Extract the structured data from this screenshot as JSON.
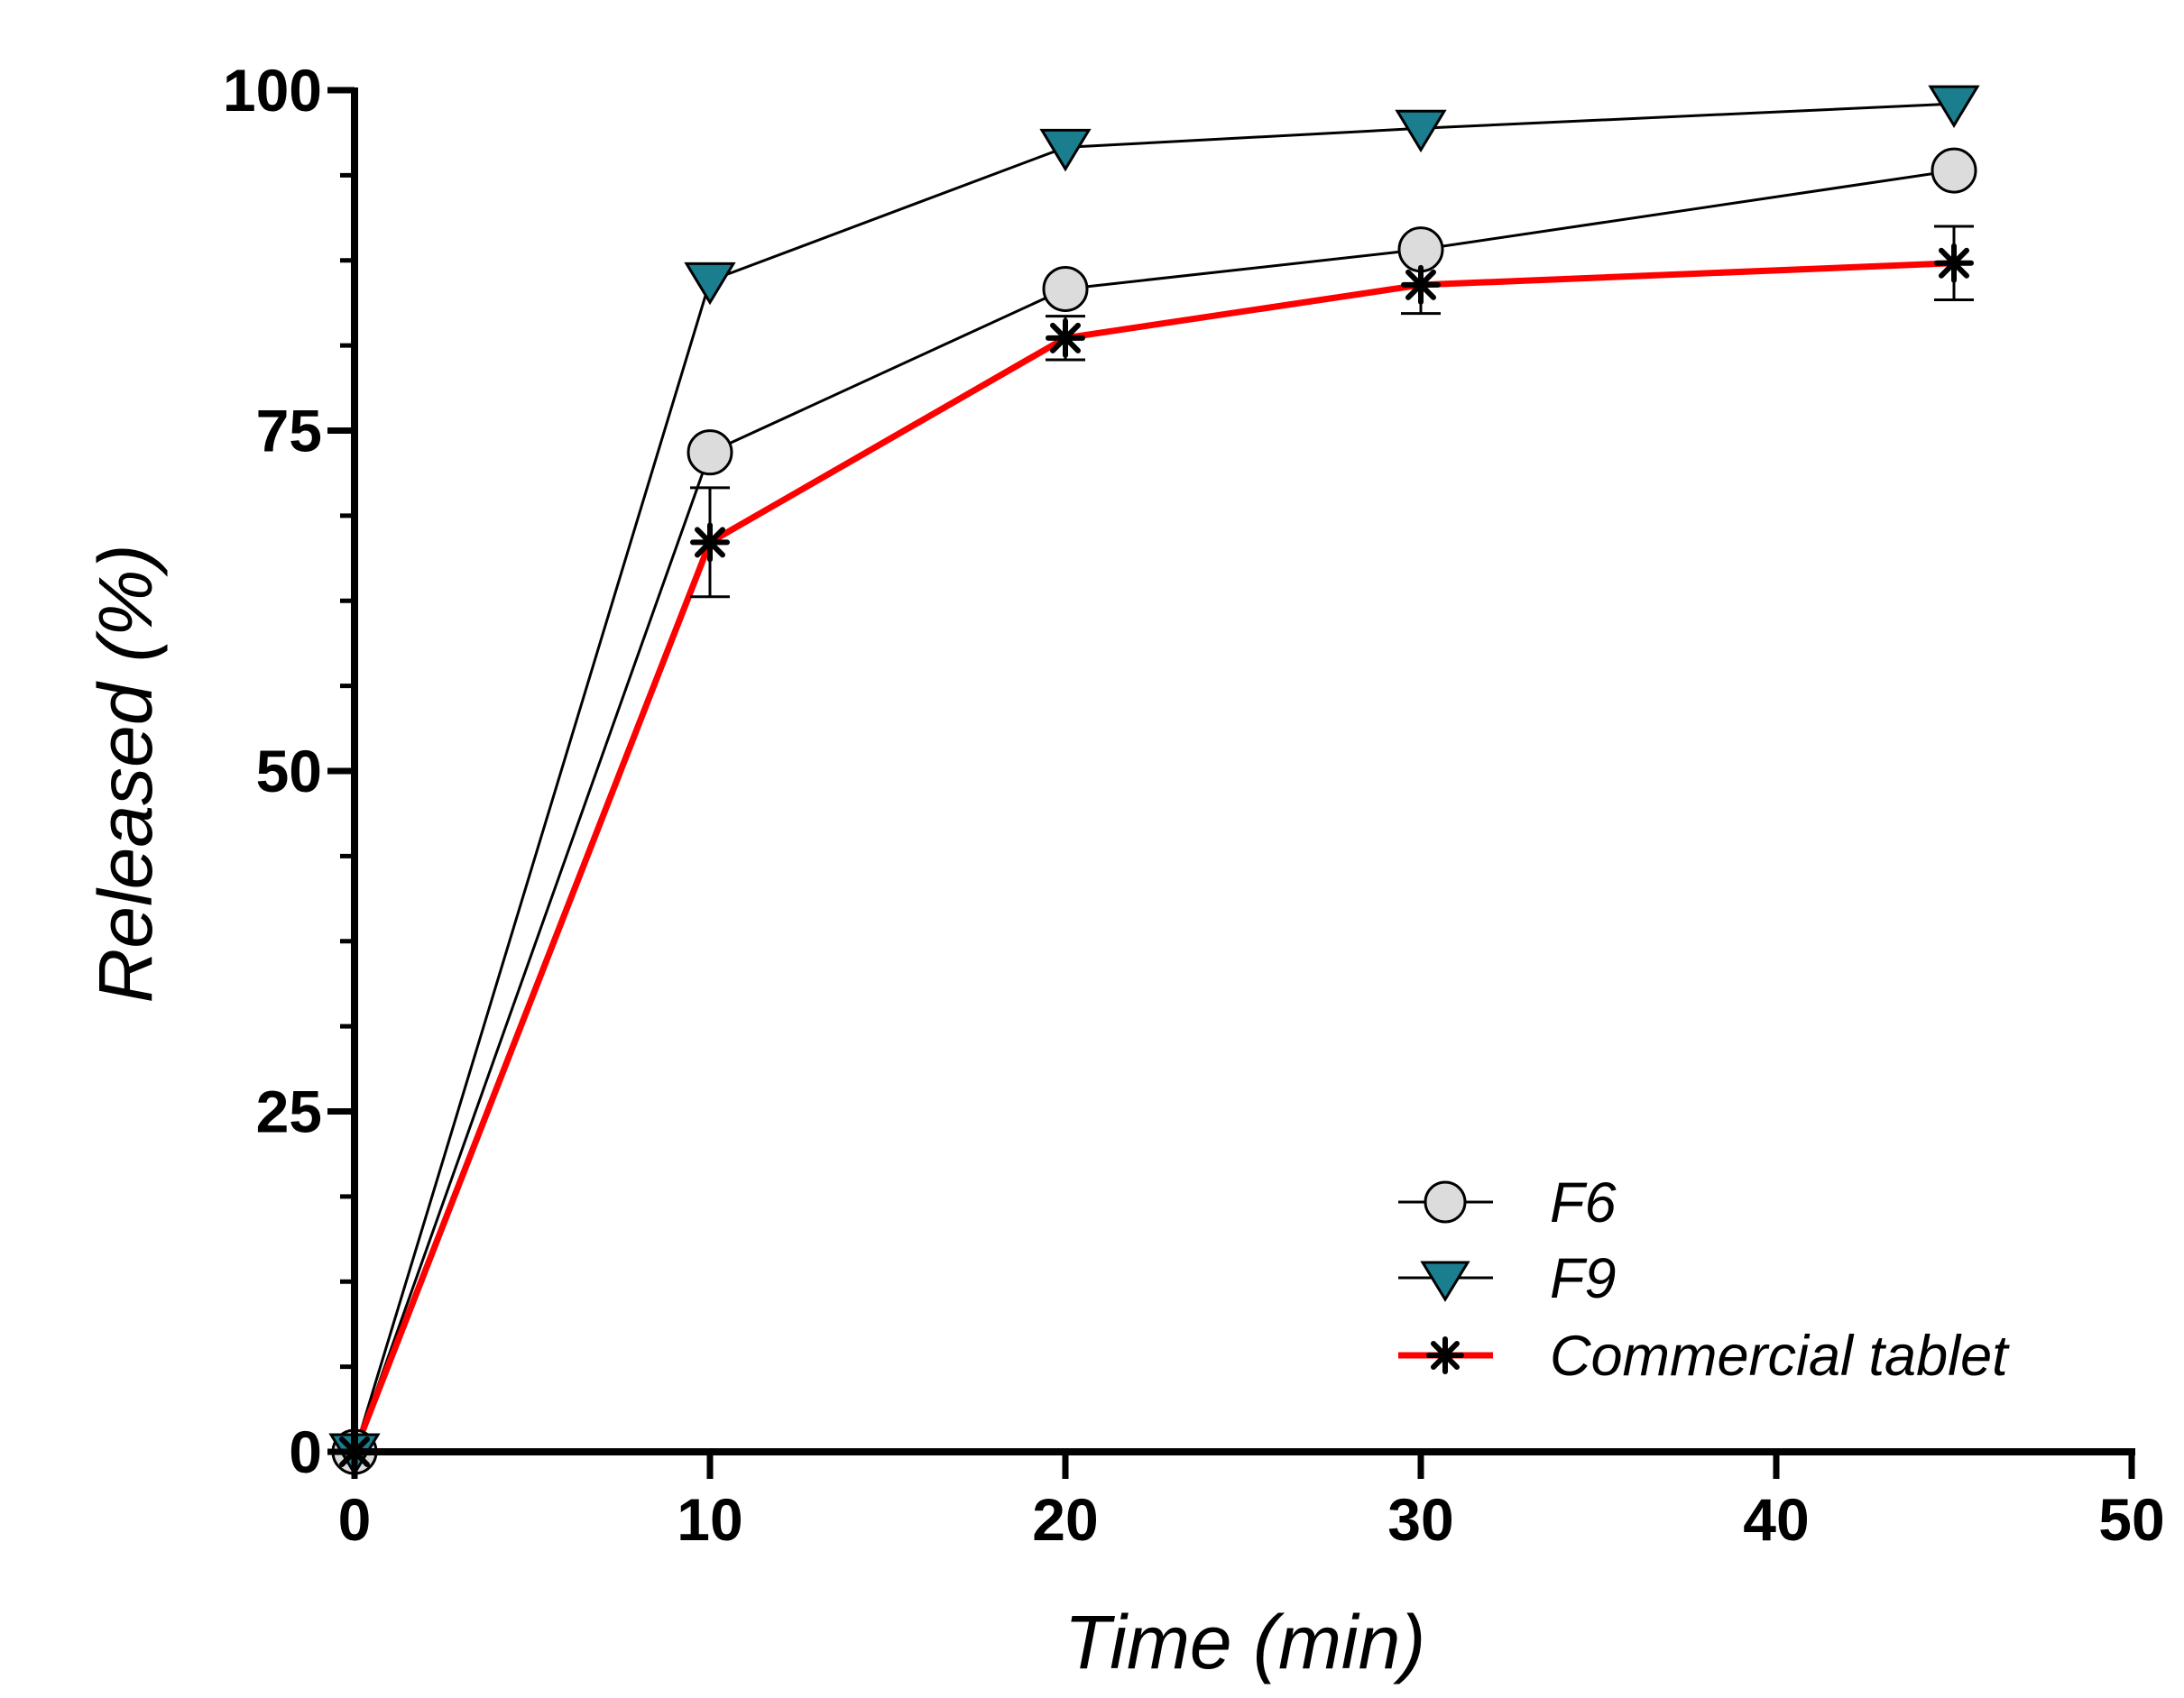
{
  "chart_data": {
    "type": "line",
    "title": "",
    "xlabel": "Time (min)",
    "ylabel": "Released (%)",
    "xlim": [
      0,
      50
    ],
    "ylim": [
      0,
      100
    ],
    "x_ticks": [
      0,
      10,
      20,
      30,
      40,
      50
    ],
    "y_ticks": [
      0,
      25,
      50,
      75,
      100
    ],
    "x_tick_labels": [
      "0",
      "10",
      "20",
      "30",
      "40",
      "50"
    ],
    "y_tick_labels": [
      "0",
      "25",
      "50",
      "75",
      "100"
    ],
    "y_minor_step": 6.25,
    "legend_position": "bottom-right",
    "grid": false,
    "series": [
      {
        "name": "F6",
        "x": [
          0,
          10,
          20,
          30,
          45
        ],
        "y": [
          0,
          73.4,
          85.4,
          88.3,
          94.1
        ],
        "errors": [
          0,
          0,
          0,
          0,
          0
        ],
        "marker": "circle",
        "marker_fill": "#dcdcdc",
        "line_color": "#000000"
      },
      {
        "name": "F9",
        "x": [
          0,
          10,
          20,
          30,
          45
        ],
        "y": [
          0,
          86.0,
          95.8,
          97.2,
          99.0
        ],
        "errors": [
          0,
          0,
          0,
          0,
          0
        ],
        "marker": "triangle-down",
        "marker_fill": "#1b7e8f",
        "line_color": "#000000"
      },
      {
        "name": "Commercial tablet",
        "x": [
          0,
          10,
          20,
          30,
          45
        ],
        "y": [
          0,
          66.8,
          81.8,
          85.7,
          87.3
        ],
        "errors": [
          0,
          4.0,
          1.6,
          2.1,
          2.7
        ],
        "marker": "asterisk",
        "marker_fill": "#000000",
        "line_color": "#ff0000"
      }
    ]
  }
}
